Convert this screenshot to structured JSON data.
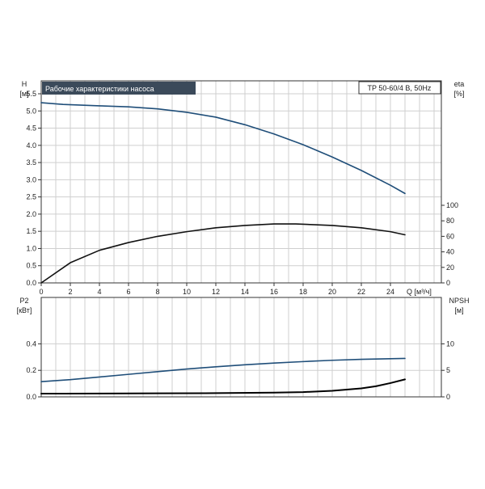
{
  "chart_data": [
    {
      "type": "line",
      "title": "Рабочие характеристики насоса",
      "model_label": "TP 50-60/4 B, 50Hz",
      "xlabel": "Q [м³/ч]",
      "x_ticks": [
        "0",
        "2",
        "4",
        "6",
        "8",
        "10",
        "12",
        "14",
        "16",
        "18",
        "20",
        "22",
        "24"
      ],
      "xlim": [
        0,
        27.5
      ],
      "grid": true,
      "y_left": {
        "label_top": "H",
        "label_unit": "[м]",
        "ylim": [
          0,
          5.5
        ],
        "ticks": [
          "0.0",
          "0.5",
          "1.0",
          "1.5",
          "2.0",
          "2.5",
          "3.0",
          "3.5",
          "4.0",
          "4.5",
          "5.0",
          "5.5"
        ]
      },
      "y_right": {
        "label_top": "eta",
        "label_unit": "[%]",
        "ylim": [
          0,
          100
        ],
        "ticks": [
          "0",
          "20",
          "40",
          "60",
          "80",
          "100"
        ]
      },
      "series": [
        {
          "axis": "left",
          "color": "#1f4e79",
          "x": [
            0,
            1.5,
            4,
            6,
            8,
            10,
            12,
            14,
            16,
            18,
            20,
            22,
            24,
            25
          ],
          "y": [
            5.24,
            5.19,
            5.15,
            5.12,
            5.06,
            4.96,
            4.82,
            4.6,
            4.33,
            4.02,
            3.66,
            3.27,
            2.84,
            2.6
          ]
        },
        {
          "axis": "right",
          "color": "#111111",
          "x": [
            0,
            2,
            4,
            6,
            8,
            10,
            12,
            14,
            16,
            17.5,
            20,
            22,
            24,
            25
          ],
          "y": [
            0,
            26,
            42,
            52,
            60,
            66,
            71,
            74,
            76,
            76,
            74,
            71,
            66,
            62
          ]
        }
      ]
    },
    {
      "type": "line",
      "xlim": [
        0,
        27.5
      ],
      "grid": true,
      "y_left": {
        "label_top": "P2",
        "label_unit": "[кВт]",
        "ylim": [
          0,
          0.5
        ],
        "ticks": [
          "0.0",
          "0.2",
          "0.4"
        ]
      },
      "y_right": {
        "label_top": "NPSH",
        "label_unit": "[м]",
        "ylim": [
          0,
          12.5
        ],
        "ticks": [
          "0",
          "5",
          "10"
        ]
      },
      "series": [
        {
          "axis": "left",
          "color": "#1f4e79",
          "x": [
            0,
            2,
            4,
            6,
            8,
            10,
            12,
            14,
            16,
            18,
            20,
            22,
            24,
            25
          ],
          "y": [
            0.115,
            0.13,
            0.15,
            0.17,
            0.19,
            0.21,
            0.227,
            0.242,
            0.255,
            0.266,
            0.276,
            0.283,
            0.288,
            0.29
          ]
        },
        {
          "axis": "right",
          "color": "#000000",
          "x": [
            0,
            1.5,
            4,
            8,
            12,
            16,
            18,
            20,
            22,
            23,
            24,
            25
          ],
          "y": [
            0.6,
            0.6,
            0.62,
            0.66,
            0.7,
            0.8,
            0.9,
            1.15,
            1.6,
            2.0,
            2.6,
            3.3
          ]
        }
      ]
    }
  ]
}
